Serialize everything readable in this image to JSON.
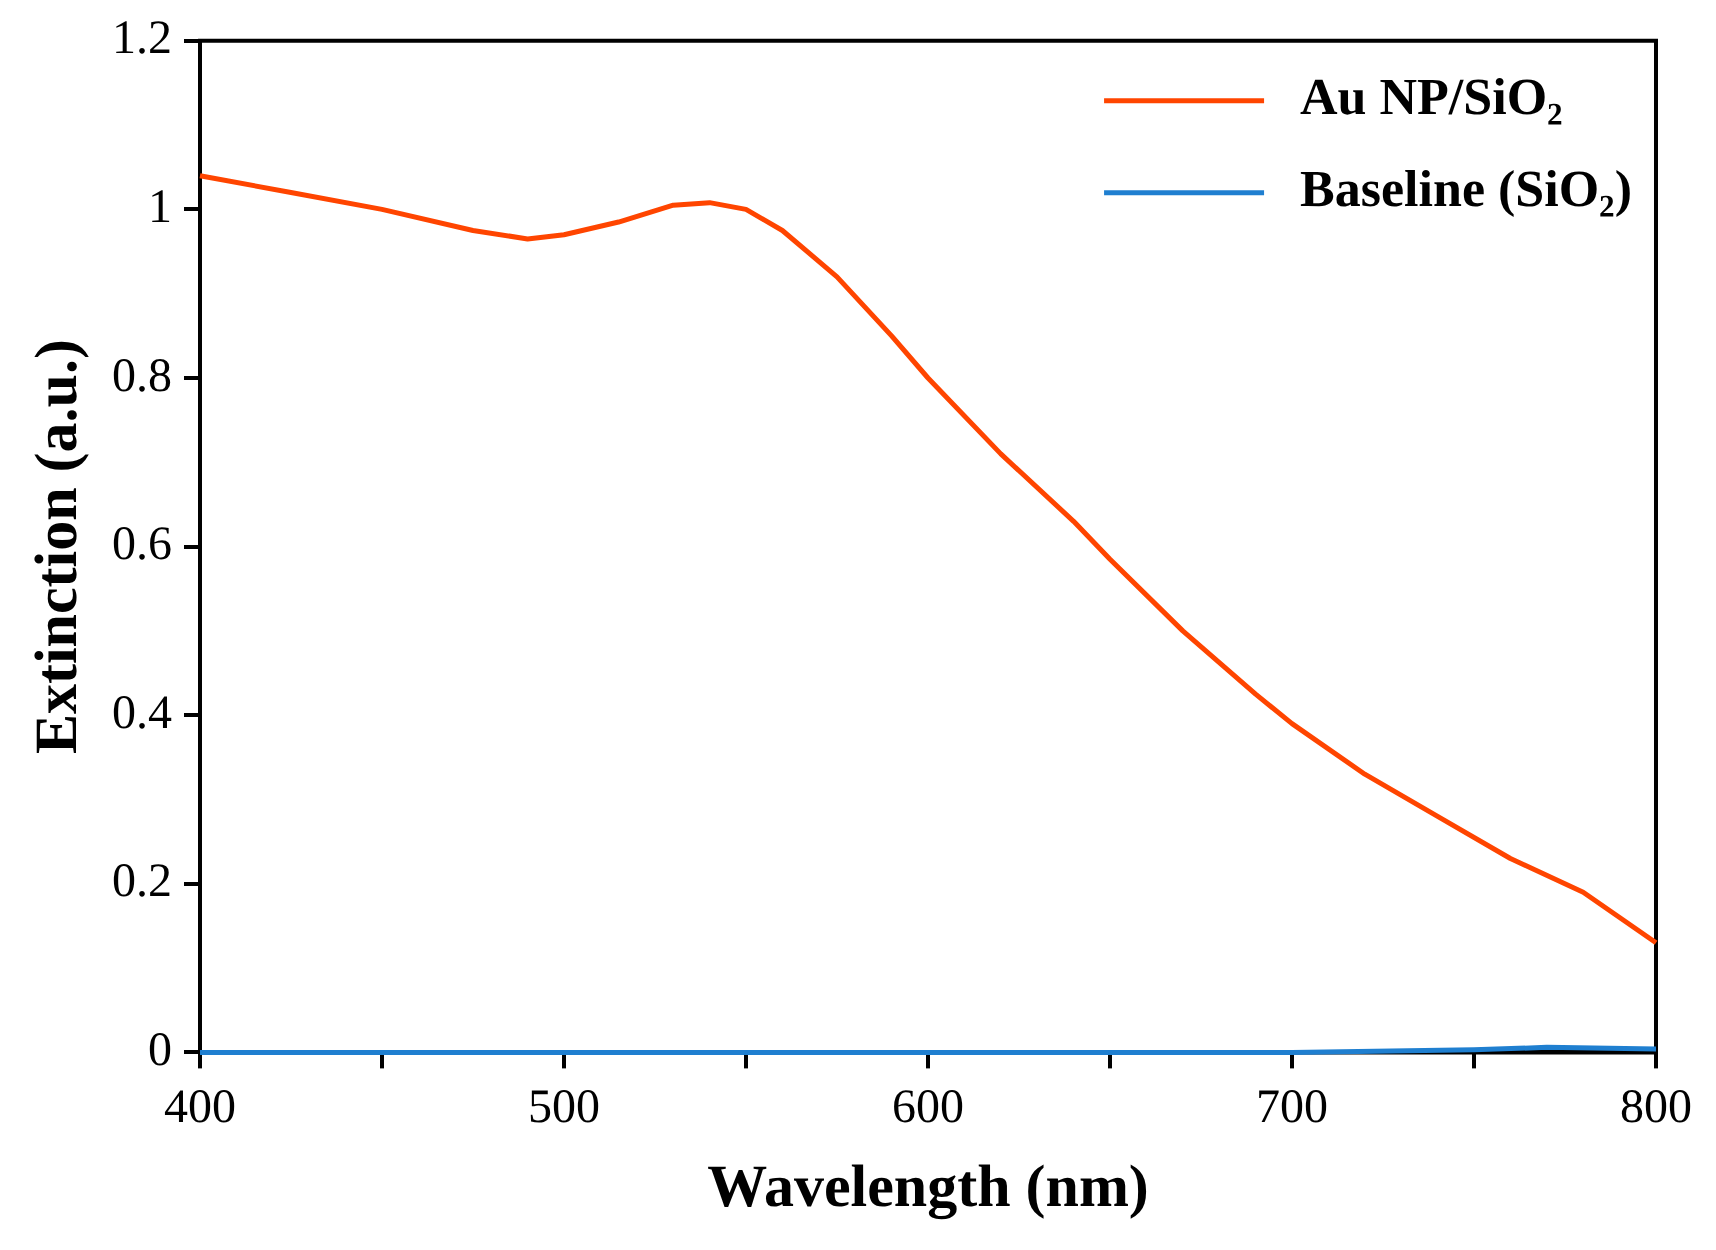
{
  "chart_data": {
    "type": "line",
    "xlabel": "Wavelength (nm)",
    "ylabel": "Extinction (a.u.)",
    "xlim": [
      400,
      800
    ],
    "xticks": [
      400,
      {
        "value": 450,
        "label": null
      },
      500,
      {
        "value": 550,
        "label": null
      },
      600,
      {
        "value": 650,
        "label": null
      },
      700,
      {
        "value": 750,
        "label": null
      },
      800
    ],
    "ylim": [
      0,
      1.2
    ],
    "yticks": [
      0,
      0.2,
      0.4,
      0.6,
      0.8,
      1,
      1.2
    ],
    "grid": false,
    "legend": "top right",
    "marker": "none",
    "line_style": "solid",
    "series": [
      {
        "name": "Au NP/SiO₂",
        "color": "#ff4500",
        "x": [
          400,
          425,
          450,
          475,
          490,
          500,
          515,
          530,
          540,
          550,
          560,
          575,
          590,
          600,
          620,
          640,
          650,
          670,
          690,
          700,
          720,
          740,
          760,
          780,
          790,
          800
        ],
        "values": [
          1.04,
          1.02,
          1.0,
          0.975,
          0.965,
          0.97,
          0.985,
          1.005,
          1.008,
          1.0,
          0.975,
          0.92,
          0.85,
          0.8,
          0.71,
          0.63,
          0.585,
          0.5,
          0.425,
          0.39,
          0.33,
          0.28,
          0.23,
          0.19,
          0.16,
          0.13
        ]
      },
      {
        "name": "Baseline (SiO₂)",
        "color": "#1f7fd0",
        "x": [
          400,
          500,
          600,
          700,
          750,
          770,
          800
        ],
        "values": [
          0,
          0,
          0,
          0,
          0.003,
          0.006,
          0.004
        ]
      }
    ]
  }
}
